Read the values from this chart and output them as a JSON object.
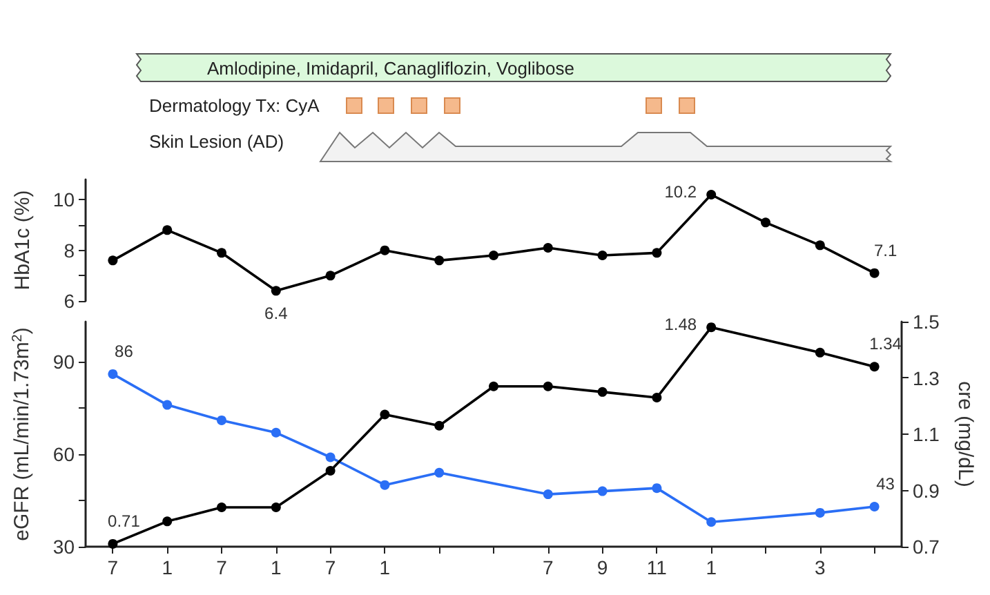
{
  "chart_data": [
    {
      "type": "other",
      "annotations": [
        "Amlodipine, Imidapril, Canagliflozin, Voglibose",
        "Dermatology Tx: CyA",
        "Skin Lesion (AD)"
      ]
    },
    {
      "type": "line",
      "categories": [
        "7",
        "1",
        "7",
        "1",
        "7",
        "1",
        null,
        null,
        "7",
        "9",
        "11",
        "1",
        null,
        "3",
        null
      ],
      "tick_labels": "y",
      "marker": "circle",
      "ylabel": "HbA1c (%)",
      "ylim": [
        6,
        10.8
      ],
      "yticks": [
        6,
        {
          "value": 7,
          "label": null
        },
        8,
        {
          "value": 9,
          "label": null
        },
        10
      ],
      "series": [
        {
          "color": "#000000",
          "values": [
            7.6,
            8.8,
            7.9,
            6.4,
            7.0,
            8.0,
            7.6,
            7.8,
            8.1,
            7.8,
            7.9,
            10.2,
            9.1,
            8.2,
            7.1
          ],
          "value_labels": [
            null,
            null,
            null,
            "6.4",
            null,
            null,
            null,
            null,
            null,
            null,
            null,
            "10.2",
            null,
            null,
            "7.1"
          ]
        }
      ]
    },
    {
      "type": "line",
      "categories": [
        "7",
        "1",
        "7",
        "1",
        "7",
        "1",
        null,
        null,
        "7",
        "9",
        "11",
        "1",
        null,
        "3",
        null
      ],
      "marker": "circle",
      "ylabel": "eGFR (mL/min/1.73m$^{2}$)",
      "y2label": "cre (mg/dL)",
      "ylim": [
        30,
        103
      ],
      "yticks": [
        30,
        {
          "value": 45,
          "label": null
        },
        60,
        {
          "value": 75,
          "label": null
        },
        90
      ],
      "y2lim": [
        0.7,
        1.5
      ],
      "y2ticks": [
        0.7,
        0.9,
        1.1,
        1.3,
        1.5
      ],
      "series": [
        {
          "color": "#2a6ef5",
          "values": [
            86,
            76,
            71,
            67,
            59,
            50,
            54,
            null,
            47,
            48,
            49,
            38,
            null,
            41,
            43
          ],
          "value_labels": [
            "86",
            null,
            null,
            null,
            null,
            null,
            null,
            null,
            null,
            null,
            null,
            null,
            null,
            null,
            "43"
          ]
        },
        {
          "color": "#000000",
          "axis": "y2",
          "values": [
            0.71,
            0.79,
            0.84,
            0.84,
            0.97,
            1.17,
            1.13,
            1.27,
            1.27,
            1.25,
            1.23,
            1.48,
            null,
            1.39,
            1.34
          ],
          "value_labels": [
            "0.71",
            null,
            null,
            null,
            null,
            null,
            null,
            null,
            null,
            null,
            null,
            "1.48",
            null,
            null,
            "1.34"
          ]
        }
      ]
    }
  ]
}
